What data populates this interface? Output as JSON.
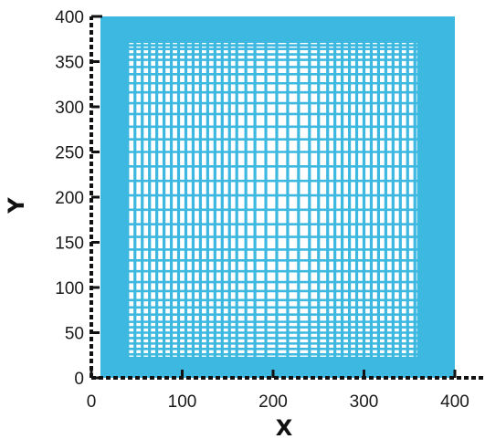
{
  "chart_data": {
    "type": "heatmap",
    "title": "",
    "xlabel": "X",
    "ylabel": "Y",
    "xlim": [
      0,
      400
    ],
    "ylim": [
      0,
      400
    ],
    "xticks": [
      0,
      100,
      200,
      300,
      400
    ],
    "yticks": [
      0,
      50,
      100,
      150,
      200,
      250,
      300,
      350,
      400
    ],
    "grid": false,
    "domain_fill": {
      "x": [
        10,
        400
      ],
      "y": [
        0,
        400
      ]
    },
    "mesh_region": {
      "x": [
        40,
        360
      ],
      "y": [
        22,
        372
      ]
    },
    "mesh_x_lines": [
      40,
      48,
      56,
      64,
      72,
      80,
      88,
      96,
      104,
      112,
      120,
      128,
      136,
      144,
      152,
      160,
      170,
      180,
      192,
      204,
      216,
      228,
      240,
      250,
      260,
      268,
      276,
      284,
      292,
      300,
      308,
      316,
      324,
      332,
      340,
      348,
      356,
      360
    ],
    "mesh_y_lines": [
      22,
      26,
      32,
      38,
      44,
      50,
      56,
      62,
      70,
      78,
      86,
      96,
      106,
      118,
      130,
      142,
      156,
      170,
      186,
      202,
      218,
      234,
      250,
      264,
      278,
      292,
      304,
      316,
      326,
      336,
      344,
      352,
      358,
      364,
      368,
      372
    ],
    "colors": {
      "fill": "#3db8e0",
      "axis": "#111111",
      "background": "#ffffff"
    }
  }
}
